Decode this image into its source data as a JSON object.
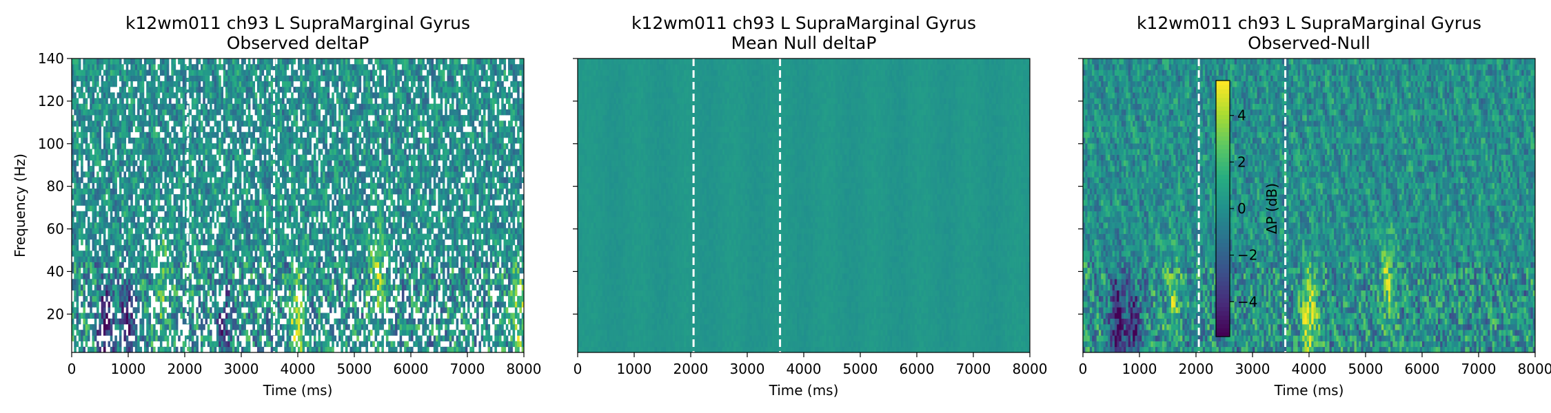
{
  "chart_data": [
    {
      "type": "heatmap",
      "title": "k12wm011 ch93 L SupraMarginal Gyrus",
      "subtitle": "Observed deltaP",
      "xlabel": "Time (ms)",
      "ylabel": "Frequency (Hz)",
      "xlim": [
        0,
        8000
      ],
      "ylim": [
        2,
        140
      ],
      "xticks": [
        0,
        1000,
        2000,
        3000,
        4000,
        5000,
        6000,
        7000,
        8000
      ],
      "yticks": [
        20,
        40,
        60,
        80,
        100,
        120,
        140
      ],
      "vlines_ms": [
        2050,
        3580
      ],
      "colormap": "viridis",
      "clim": [
        -5.5,
        5.5
      ],
      "masked_cells": "white",
      "hotspots": [
        {
          "time_ms": 4000,
          "freq_hz": 15,
          "value": 4.0
        },
        {
          "time_ms": 5400,
          "freq_hz": 38,
          "value": 3.0
        },
        {
          "time_ms": 1600,
          "freq_hz": 35,
          "value": 2.5
        },
        {
          "time_ms": 7900,
          "freq_hz": 20,
          "value": 3.0
        },
        {
          "time_ms": 600,
          "freq_hz": 12,
          "value": -4.5
        },
        {
          "time_ms": 1000,
          "freq_hz": 15,
          "value": -4.0
        },
        {
          "time_ms": 2700,
          "freq_hz": 15,
          "value": -3.0
        }
      ]
    },
    {
      "type": "heatmap",
      "title": "k12wm011 ch93 L SupraMarginal Gyrus",
      "subtitle": "Mean Null deltaP",
      "xlabel": "Time (ms)",
      "ylabel": "",
      "xlim": [
        0,
        8000
      ],
      "ylim": [
        2,
        140
      ],
      "xticks": [
        0,
        1000,
        2000,
        3000,
        4000,
        5000,
        6000,
        7000,
        8000
      ],
      "yticks": [
        20,
        40,
        60,
        80,
        100,
        120,
        140
      ],
      "vlines_ms": [
        2050,
        3580
      ],
      "colormap": "viridis",
      "clim": [
        -5.5,
        5.5
      ],
      "hotspots": []
    },
    {
      "type": "heatmap",
      "title": "k12wm011 ch93 L SupraMarginal Gyrus",
      "subtitle": "Observed-Null",
      "xlabel": "Time (ms)",
      "ylabel": "",
      "xlim": [
        0,
        8000
      ],
      "ylim": [
        2,
        140
      ],
      "xticks": [
        0,
        1000,
        2000,
        3000,
        4000,
        5000,
        6000,
        7000,
        8000
      ],
      "yticks": [
        20,
        40,
        60,
        80,
        100,
        120,
        140
      ],
      "vlines_ms": [
        2050,
        3580
      ],
      "colormap": "viridis",
      "clim": [
        -5.5,
        5.5
      ],
      "colorbar": {
        "label": "ΔP (dB)",
        "ticks": [
          -4,
          -2,
          0,
          2,
          4
        ],
        "range": [
          -5.5,
          5.5
        ]
      },
      "hotspots": [
        {
          "time_ms": 4000,
          "freq_hz": 18,
          "value": 5.0
        },
        {
          "time_ms": 1600,
          "freq_hz": 25,
          "value": 2.5
        },
        {
          "time_ms": 5400,
          "freq_hz": 35,
          "value": 3.0
        },
        {
          "time_ms": 600,
          "freq_hz": 15,
          "value": -5.0
        },
        {
          "time_ms": 900,
          "freq_hz": 12,
          "value": -4.0
        }
      ]
    }
  ]
}
